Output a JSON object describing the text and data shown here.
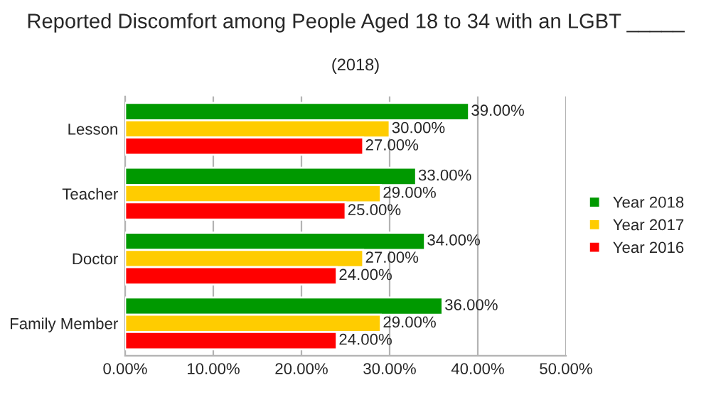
{
  "chart_data": {
    "type": "bar",
    "orientation": "horizontal",
    "title": "Reported Discomfort among People Aged 18 to 34 with an LGBT _____",
    "subtitle": "(2018)",
    "categories": [
      "Lesson",
      "Teacher",
      "Doctor",
      "Family Member"
    ],
    "series": [
      {
        "name": "Year 2018",
        "color": "#009900",
        "values": [
          39,
          33,
          34,
          36
        ],
        "value_labels": [
          "39.00%",
          "33.00%",
          "34.00%",
          "36.00%"
        ]
      },
      {
        "name": "Year 2017",
        "color": "#ffcc00",
        "values": [
          30,
          29,
          27,
          29
        ],
        "value_labels": [
          "30.00%",
          "29.00%",
          "27.00%",
          "29.00%"
        ]
      },
      {
        "name": "Year 2016",
        "color": "#ff0000",
        "values": [
          27,
          25,
          24,
          24
        ],
        "value_labels": [
          "27.00%",
          "25.00%",
          "24.00%",
          "24.00%"
        ]
      }
    ],
    "xlim": [
      0,
      50
    ],
    "xticks": [
      {
        "value": 0,
        "label": "0.00%"
      },
      {
        "value": 10,
        "label": "10.00%"
      },
      {
        "value": 20,
        "label": "20.00%"
      },
      {
        "value": 30,
        "label": "30.00%"
      },
      {
        "value": 40,
        "label": "40.00%"
      },
      {
        "value": 50,
        "label": "50.00%"
      }
    ],
    "grid": "x",
    "legend": "right"
  }
}
